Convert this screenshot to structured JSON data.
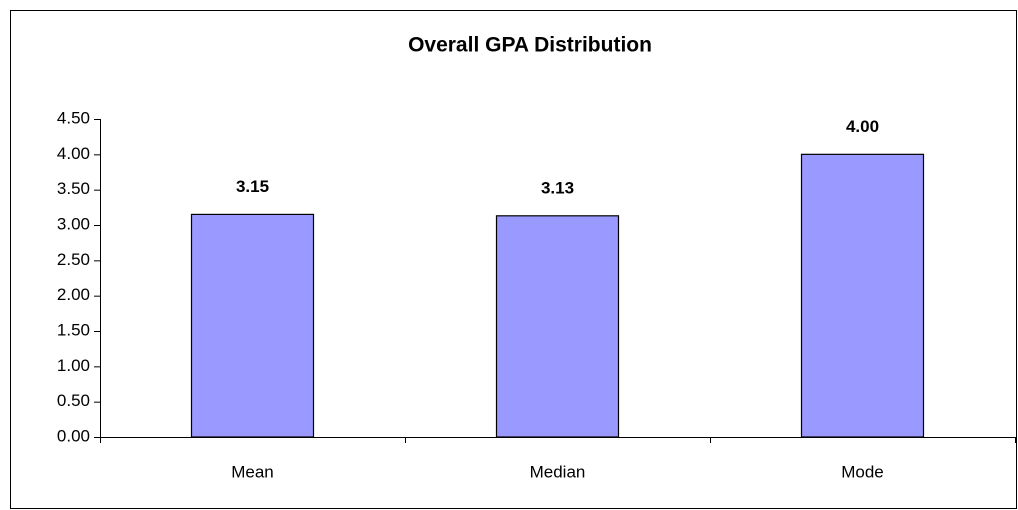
{
  "chart_data": {
    "type": "bar",
    "title": "Overall GPA Distribution",
    "categories": [
      "Mean",
      "Median",
      "Mode"
    ],
    "values": [
      3.15,
      3.13,
      4.0
    ],
    "value_labels": [
      "3.15",
      "3.13",
      "4.00"
    ],
    "color": "#9999ff",
    "ylim": [
      0,
      4.5
    ],
    "yticks": [
      {
        "value": 0,
        "label": "0.00"
      },
      {
        "value": 0.5,
        "label": "0.50"
      },
      {
        "value": 1,
        "label": "1.00"
      },
      {
        "value": 1.5,
        "label": "1.50"
      },
      {
        "value": 2,
        "label": "2.00"
      },
      {
        "value": 2.5,
        "label": "2.50"
      },
      {
        "value": 3,
        "label": "3.00"
      },
      {
        "value": 3.5,
        "label": "3.50"
      },
      {
        "value": 4,
        "label": "4.00"
      },
      {
        "value": 4.5,
        "label": "4.50"
      }
    ],
    "grid": false
  }
}
